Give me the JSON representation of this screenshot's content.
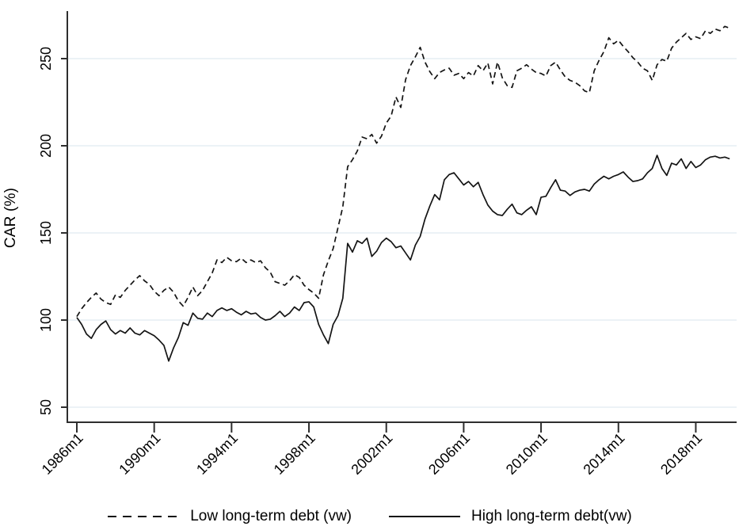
{
  "chart_data": {
    "type": "line",
    "title": "",
    "xlabel": "",
    "ylabel": "CAR (%)",
    "grid": "horizontal-only",
    "legend_position": "bottom",
    "y_ticks": [
      50,
      100,
      150,
      200,
      250
    ],
    "y_tick_labels": [
      "50",
      "100",
      "150",
      "200",
      "250"
    ],
    "ylim": [
      50,
      250
    ],
    "x_tick_years": [
      1986,
      1990,
      1994,
      1998,
      2002,
      2006,
      2010,
      2014,
      2018
    ],
    "x_tick_labels": [
      "1986m1",
      "1990m1",
      "1994m1",
      "1998m1",
      "2002m1",
      "2006m1",
      "2010m1",
      "2014m1",
      "2018m1"
    ],
    "xlim": [
      1985.5,
      2020.3
    ],
    "x_unit": "month (Stata %tm, quarterly sampled)",
    "x": [
      1986,
      1986.25,
      1986.5,
      1986.75,
      1987,
      1987.25,
      1987.5,
      1987.75,
      1988,
      1988.25,
      1988.5,
      1988.75,
      1989,
      1989.25,
      1989.5,
      1989.75,
      1990,
      1990.25,
      1990.5,
      1990.75,
      1991,
      1991.25,
      1991.5,
      1991.75,
      1992,
      1992.25,
      1992.5,
      1992.75,
      1993,
      1993.25,
      1993.5,
      1993.75,
      1994,
      1994.25,
      1994.5,
      1994.75,
      1995,
      1995.25,
      1995.5,
      1995.75,
      1996,
      1996.25,
      1996.5,
      1996.75,
      1997,
      1997.25,
      1997.5,
      1997.75,
      1998,
      1998.25,
      1998.5,
      1998.75,
      1999,
      1999.25,
      1999.5,
      1999.75,
      2000,
      2000.25,
      2000.5,
      2000.75,
      2001,
      2001.25,
      2001.5,
      2001.75,
      2002,
      2002.25,
      2002.5,
      2002.75,
      2003,
      2003.25,
      2003.5,
      2003.75,
      2004,
      2004.25,
      2004.5,
      2004.75,
      2005,
      2005.25,
      2005.5,
      2005.75,
      2006,
      2006.25,
      2006.5,
      2006.75,
      2007,
      2007.25,
      2007.5,
      2007.75,
      2008,
      2008.25,
      2008.5,
      2008.75,
      2009,
      2009.25,
      2009.5,
      2009.75,
      2010,
      2010.25,
      2010.5,
      2010.75,
      2011,
      2011.25,
      2011.5,
      2011.75,
      2012,
      2012.25,
      2012.5,
      2012.75,
      2013,
      2013.25,
      2013.5,
      2013.75,
      2014,
      2014.25,
      2014.5,
      2014.75,
      2015,
      2015.25,
      2015.5,
      2015.75,
      2016,
      2016.25,
      2016.5,
      2016.75,
      2017,
      2017.25,
      2017.5,
      2017.75,
      2018,
      2018.25,
      2018.5,
      2018.75,
      2019,
      2019.25,
      2019.5,
      2019.75
    ],
    "series": [
      {
        "name": "Low long-term debt (vw)",
        "line_style": "dashed",
        "color": "#141414",
        "values": [
          102,
          106.5,
          110,
          113,
          115.5,
          112,
          110,
          109,
          114.5,
          113,
          117,
          120,
          123,
          125.5,
          122.5,
          120.5,
          116.5,
          114,
          117,
          119,
          116,
          111,
          108,
          113,
          119,
          114,
          117,
          122,
          127,
          134.5,
          133,
          136,
          134,
          133.5,
          135.5,
          133,
          134.5,
          133,
          134,
          130,
          127.5,
          122,
          121,
          120,
          122.5,
          126,
          124.5,
          120,
          117.5,
          115.5,
          112.5,
          126,
          134,
          141,
          153,
          165,
          188,
          192,
          197,
          205,
          204,
          206.5,
          201.5,
          205.5,
          213,
          217,
          228,
          222,
          238,
          246,
          251,
          256.5,
          248,
          242.5,
          238.5,
          242,
          243.5,
          244.5,
          240.5,
          241.5,
          238.5,
          242,
          240,
          246,
          243,
          247.5,
          235.5,
          248,
          239,
          234.5,
          233.5,
          243,
          244.5,
          246.5,
          244,
          242,
          241.5,
          240,
          246,
          248,
          243.5,
          239.5,
          237.5,
          236.5,
          234.5,
          231.5,
          230.5,
          243,
          249,
          254,
          262,
          258.5,
          260.5,
          257,
          254,
          250.5,
          248,
          244.5,
          243,
          237.5,
          246.5,
          249.5,
          248.5,
          256,
          259.5,
          262,
          264.5,
          261,
          262.5,
          261.5,
          266,
          264.5,
          267,
          266,
          268.5,
          267.5
        ]
      },
      {
        "name": "High long-term debt(vw)",
        "line_style": "solid",
        "color": "#141414",
        "values": [
          101.5,
          97.5,
          92,
          89.5,
          94.5,
          97.5,
          99.5,
          94.5,
          92,
          94,
          92.5,
          95.5,
          92.5,
          91.5,
          94,
          92.5,
          91,
          88.5,
          85.5,
          76.5,
          84,
          90,
          98.5,
          97,
          104,
          101,
          100.5,
          104,
          102,
          105.5,
          107,
          105.5,
          106.5,
          104.5,
          103,
          105,
          103.5,
          104,
          101.5,
          100,
          100.5,
          102.5,
          105,
          102,
          104,
          107.5,
          105.5,
          110,
          110.5,
          107.5,
          97.5,
          91.5,
          86.5,
          97.5,
          102.5,
          112.5,
          144,
          139,
          145.5,
          144,
          147,
          136.5,
          139.5,
          144.5,
          147,
          145,
          141.5,
          142.5,
          138.5,
          134.5,
          143,
          148,
          158,
          165.5,
          172,
          169,
          180.5,
          183.5,
          184.5,
          181,
          177.5,
          179.5,
          176.5,
          179,
          172,
          166,
          162.5,
          160.5,
          160,
          163.5,
          166.5,
          161.5,
          160.5,
          163,
          165,
          160.5,
          170.5,
          171,
          176,
          180.5,
          174.5,
          174,
          171.5,
          173.5,
          174.5,
          175,
          174,
          178,
          180.5,
          182.5,
          181,
          182.5,
          183.5,
          185,
          182,
          179.5,
          180,
          181,
          184.5,
          187,
          194.5,
          187,
          183,
          190,
          189,
          192.5,
          187,
          191,
          187.5,
          189,
          192,
          193.5,
          194,
          193,
          193.5,
          192.5
        ]
      }
    ]
  },
  "colors": {
    "line": "#141414",
    "axis": "#2e2e2e",
    "grid": "#e5eef3",
    "background": "#ffffff",
    "text": "#000000"
  }
}
